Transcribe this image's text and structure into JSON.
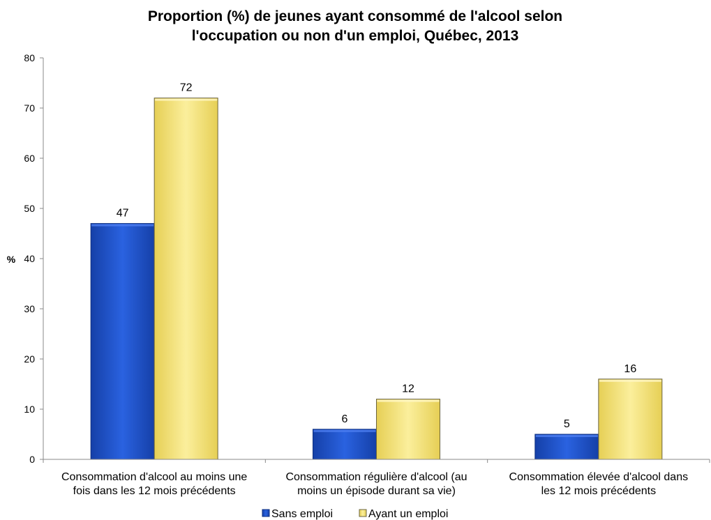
{
  "chart_data": {
    "type": "bar",
    "title_lines": [
      "Proportion (%) de jeunes ayant consommé de l'alcool selon",
      "l'occupation ou non d'un emploi, Québec, 2013"
    ],
    "ylabel": "%",
    "xlabel": "",
    "ylim": [
      0,
      80
    ],
    "yticks": [
      0,
      10,
      20,
      30,
      40,
      50,
      60,
      70,
      80
    ],
    "grid": false,
    "legend_position": "bottom",
    "categories": [
      [
        "Consommation d'alcool au moins une",
        "fois dans les 12 mois précédents"
      ],
      [
        "Consommation régulière d'alcool (au",
        "moins un épisode durant sa vie)"
      ],
      [
        "Consommation élevée d'alcool dans",
        "les 12 mois précédents"
      ]
    ],
    "series": [
      {
        "name": "Sans emploi",
        "values": [
          47,
          6,
          5
        ],
        "color": "#1b4fc6"
      },
      {
        "name": "Ayant un emploi",
        "values": [
          72,
          12,
          16
        ],
        "color": "#f3e27a"
      }
    ]
  }
}
